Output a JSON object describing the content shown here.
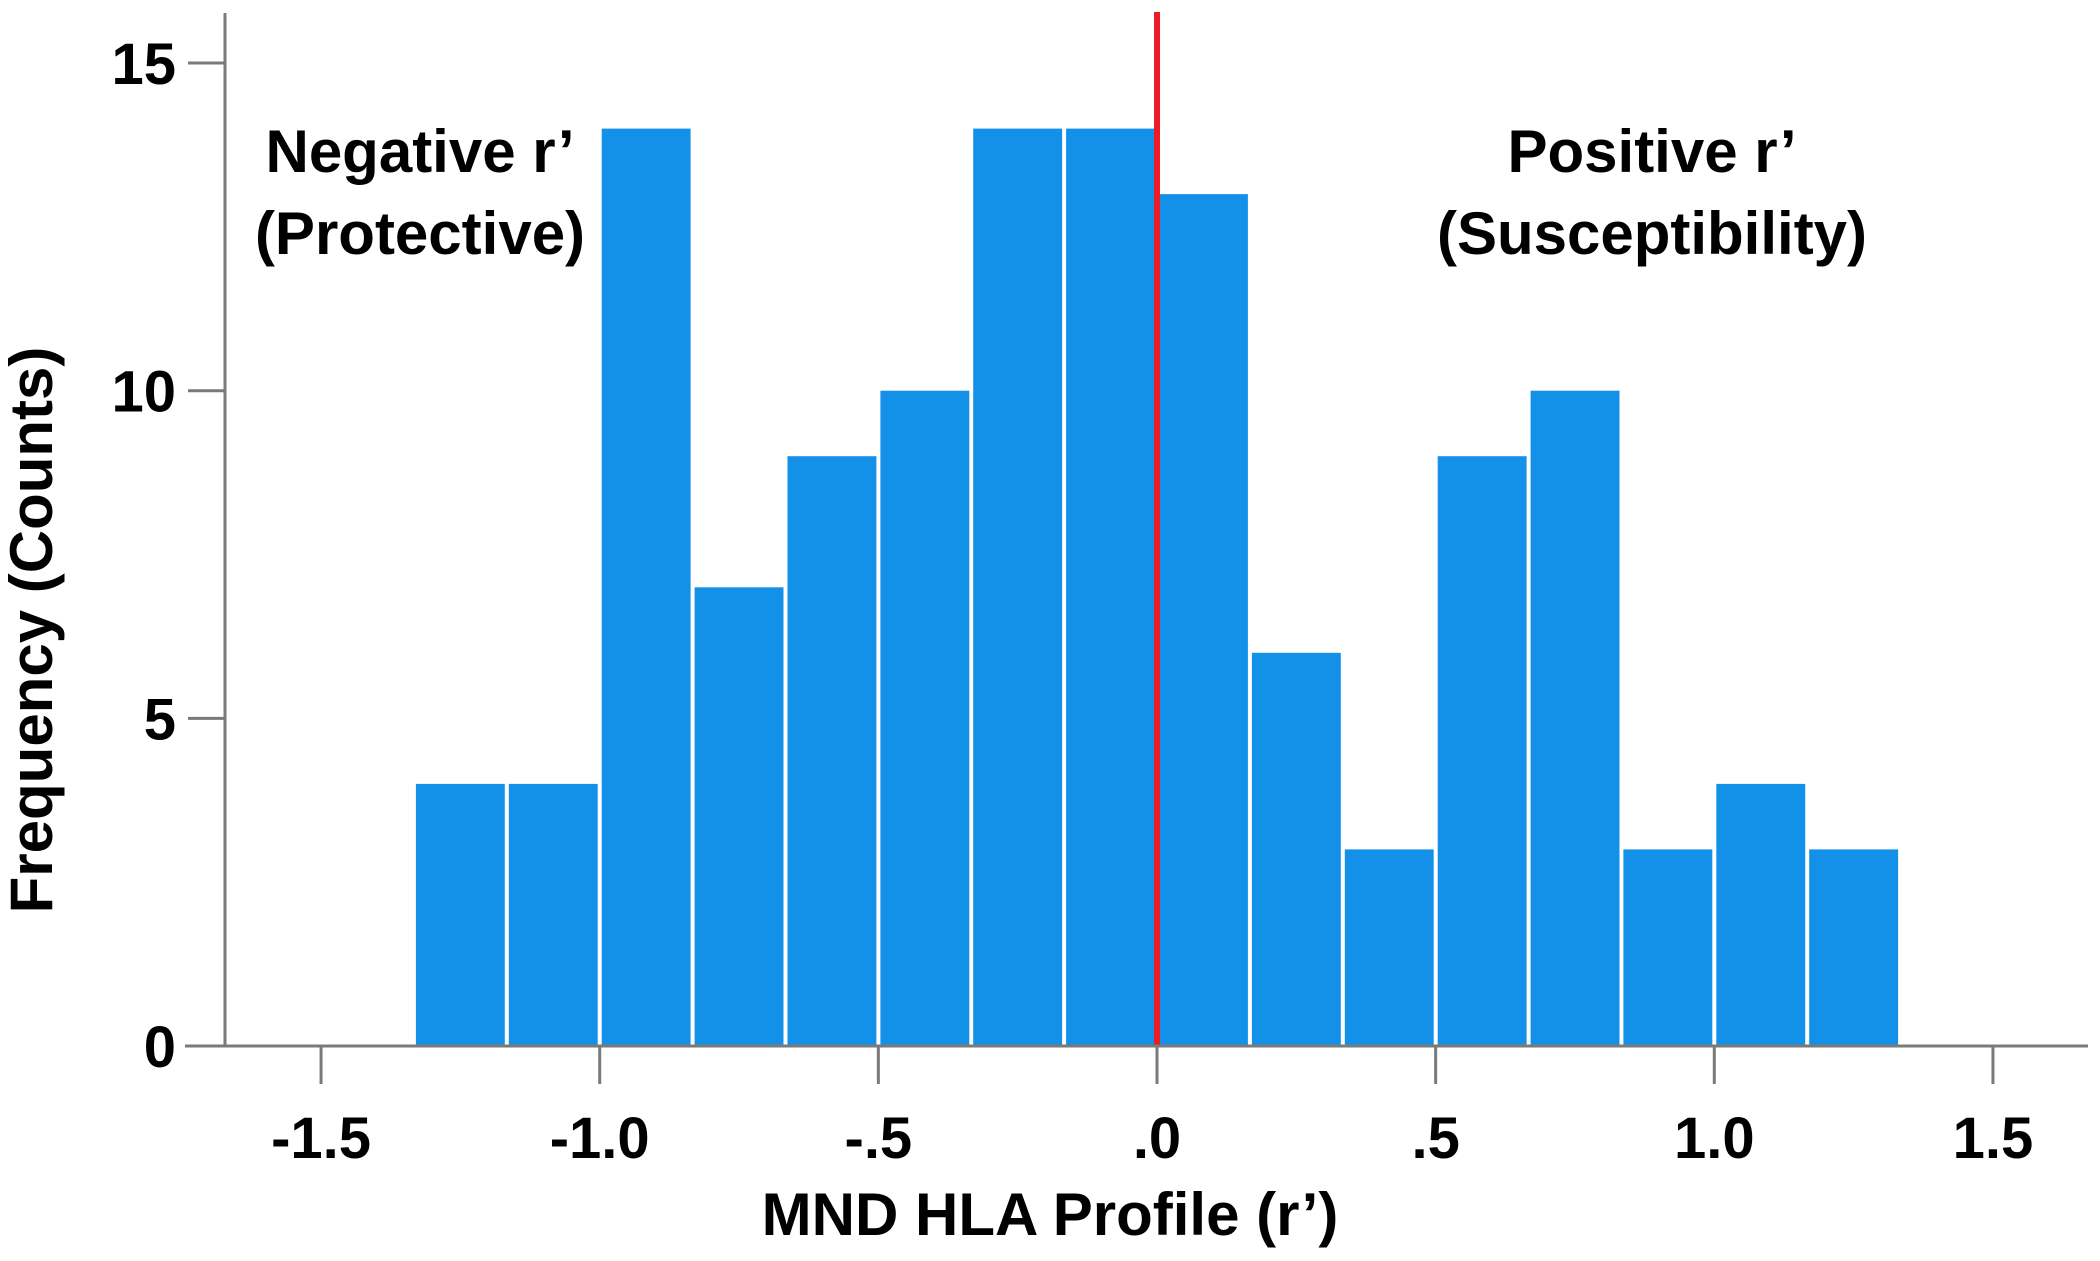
{
  "chart_data": {
    "type": "histogram",
    "title": "",
    "xlabel": "MND HLA Profile (r’)",
    "ylabel": "Frequency (Counts)",
    "xlim": [
      -1.5,
      1.5
    ],
    "ylim": [
      0,
      15.8
    ],
    "grid": false,
    "legend": "none",
    "bar_color": "#1391E8",
    "bar_gap_color": "#FFFFFF",
    "axis_color": "#7A7A7A",
    "text_color": "#000000",
    "ref_line": {
      "x": 0.0,
      "color": "#ED1C24"
    },
    "bins": {
      "start": -1.33333,
      "width": 0.16667,
      "counts": [
        4,
        4,
        14,
        7,
        9,
        10,
        14,
        14,
        13,
        6,
        3,
        9,
        10,
        3,
        4,
        3
      ]
    },
    "x_ticks": [
      {
        "v": -1.5,
        "label": "-1.5"
      },
      {
        "v": -1.0,
        "label": "-1.0"
      },
      {
        "v": -0.5,
        "label": "-.5"
      },
      {
        "v": 0.0,
        "label": ".0"
      },
      {
        "v": 0.5,
        "label": ".5"
      },
      {
        "v": 1.0,
        "label": "1.0"
      },
      {
        "v": 1.5,
        "label": "1.5"
      }
    ],
    "y_ticks": [
      {
        "v": 0,
        "label": "0"
      },
      {
        "v": 5,
        "label": "5"
      },
      {
        "v": 10,
        "label": "10"
      },
      {
        "v": 15,
        "label": "15"
      }
    ],
    "annotations": {
      "negative": {
        "line1": "Negative r’",
        "line2": "(Protective)"
      },
      "positive": {
        "line1": "Positive r’",
        "line2": "(Susceptibility)"
      }
    }
  }
}
